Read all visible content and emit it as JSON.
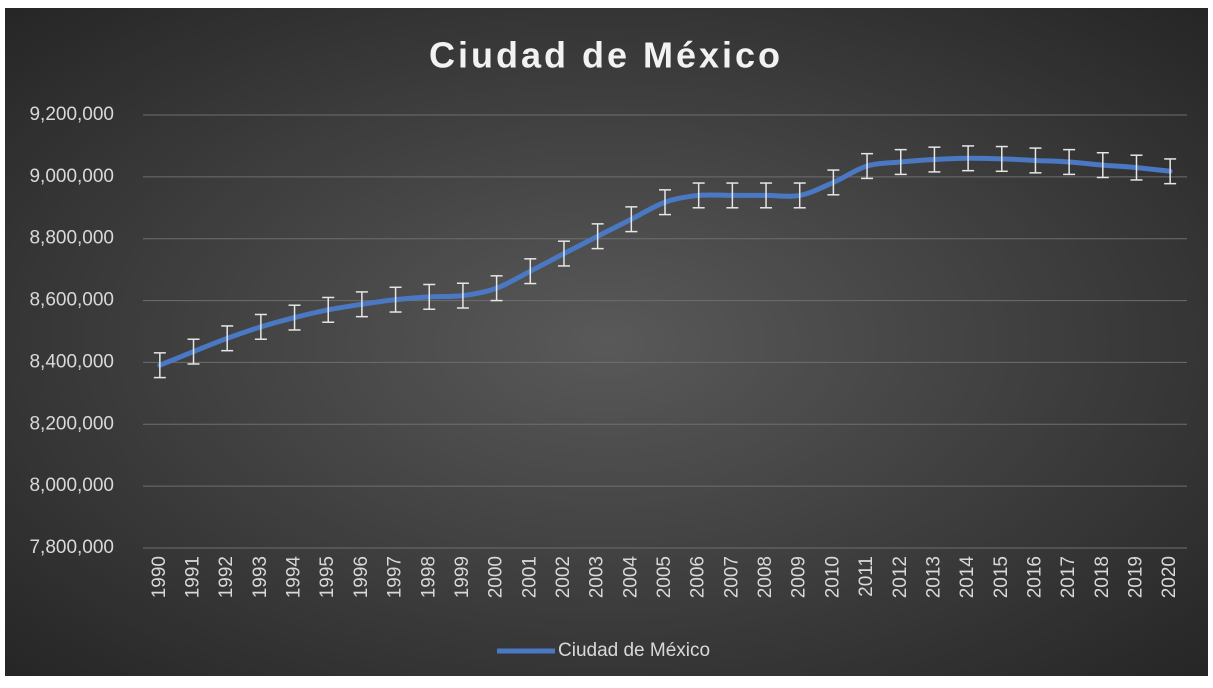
{
  "chart_data": {
    "type": "line",
    "title": "Ciudad de México",
    "categories": [
      "1990",
      "1991",
      "1992",
      "1993",
      "1994",
      "1995",
      "1996",
      "1997",
      "1998",
      "1999",
      "2000",
      "2001",
      "2002",
      "2003",
      "2004",
      "2005",
      "2006",
      "2007",
      "2008",
      "2009",
      "2010",
      "2011",
      "2012",
      "2013",
      "2014",
      "2015",
      "2016",
      "2017",
      "2018",
      "2019",
      "2020"
    ],
    "series": [
      {
        "name": "Ciudad de México",
        "color": "#4a78c2",
        "values": [
          8391000,
          8435000,
          8478000,
          8515000,
          8545000,
          8570000,
          8588000,
          8603000,
          8612000,
          8616000,
          8640000,
          8695000,
          8752000,
          8808000,
          8863000,
          8918000,
          8940000,
          8940000,
          8940000,
          8940000,
          8982000,
          9035000,
          9048000,
          9056000,
          9060000,
          9058000,
          9053000,
          9048000,
          9038000,
          9030000,
          9018000
        ],
        "error": 40000
      }
    ],
    "ylim": [
      7800000,
      9200000
    ],
    "yticks": [
      {
        "value": 7800000,
        "label": "7,800,000"
      },
      {
        "value": 8000000,
        "label": "8,000,000"
      },
      {
        "value": 8200000,
        "label": "8,200,000"
      },
      {
        "value": 8400000,
        "label": "8,400,000"
      },
      {
        "value": 8600000,
        "label": "8,600,000"
      },
      {
        "value": 8800000,
        "label": "8,800,000"
      },
      {
        "value": 9000000,
        "label": "9,000,000"
      },
      {
        "value": 9200000,
        "label": "9,200,000"
      }
    ],
    "grid": true,
    "legend": "bottom"
  }
}
